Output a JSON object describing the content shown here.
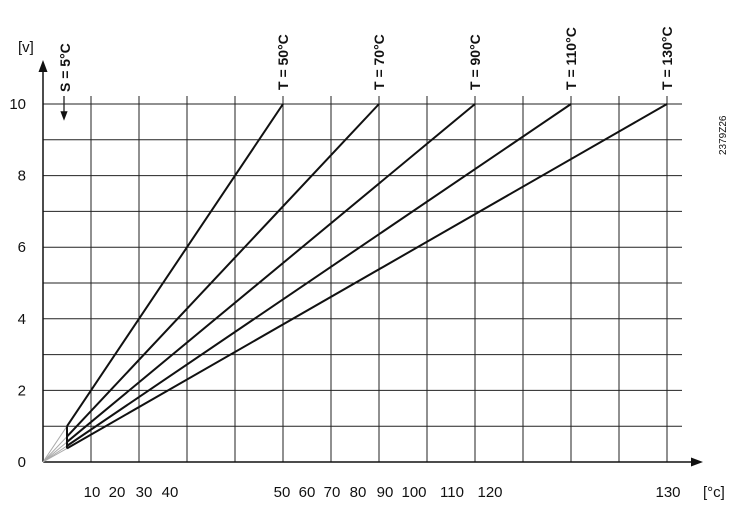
{
  "chart_data": {
    "type": "line",
    "y_label": "[v]",
    "x_label": "[°c]",
    "annotation": "S = 5°C",
    "code": "2379Z26",
    "xlim": [
      0,
      135
    ],
    "ylim": [
      0,
      10
    ],
    "xticks": [
      10,
      20,
      30,
      40,
      50,
      60,
      70,
      80,
      90,
      100,
      110,
      120,
      130
    ],
    "yticks": [
      0,
      2,
      4,
      6,
      8,
      10
    ],
    "y_minor_ticks": [
      1,
      2,
      3,
      4,
      5,
      6,
      7,
      8,
      9,
      10
    ],
    "grid": true,
    "series": [
      {
        "name": "T = 50°C",
        "color": "#111111",
        "x": [
          0,
          5,
          50
        ],
        "values": [
          0,
          1,
          10
        ]
      },
      {
        "name": "T = 70°C",
        "color": "#111111",
        "x": [
          0,
          5,
          70
        ],
        "values": [
          0,
          0.71,
          10
        ]
      },
      {
        "name": "T = 90°C",
        "color": "#111111",
        "x": [
          0,
          5,
          90
        ],
        "values": [
          0,
          0.56,
          10
        ]
      },
      {
        "name": "T = 110°C",
        "color": "#111111",
        "x": [
          0,
          5,
          110
        ],
        "values": [
          0,
          0.45,
          10
        ]
      },
      {
        "name": "T = 130°C",
        "color": "#111111",
        "x": [
          0,
          5,
          130
        ],
        "values": [
          0,
          0.38,
          10
        ]
      }
    ]
  }
}
